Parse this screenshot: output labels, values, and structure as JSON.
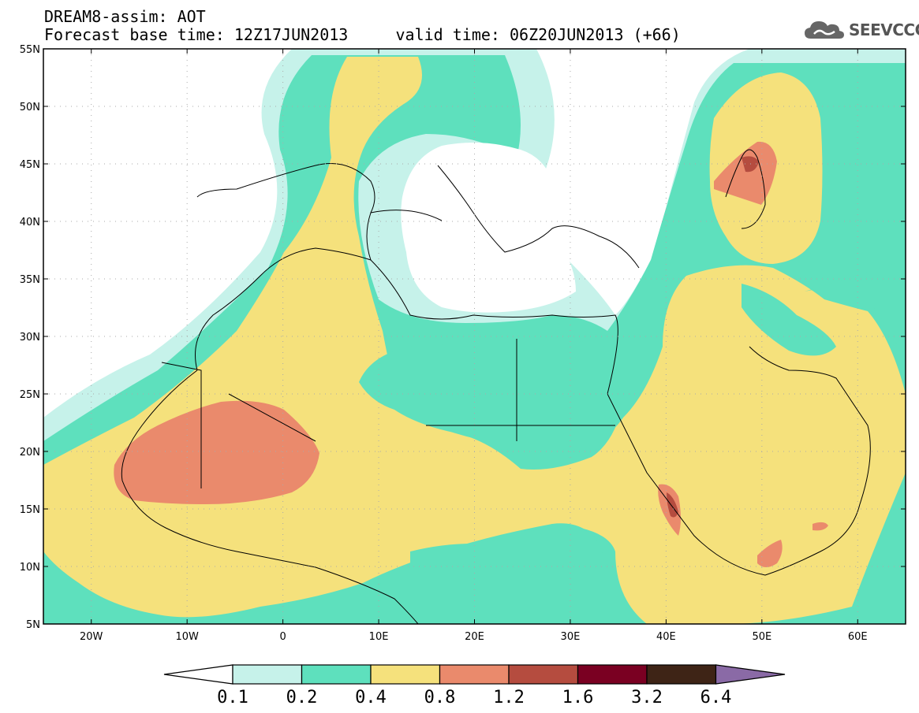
{
  "header": {
    "line1": "DREAM8-assim: AOT",
    "line2": "Forecast base time: 12Z17JUN2013     valid time: 06Z20JUN2013 (+66)",
    "logo_text": "SEEVCCC",
    "logo_icon": "cloud-icon"
  },
  "map": {
    "lon_range": [
      -25,
      65
    ],
    "lat_range": [
      5,
      55
    ],
    "lat_ticks": [
      "5N",
      "10N",
      "15N",
      "20N",
      "25N",
      "30N",
      "35N",
      "40N",
      "45N",
      "50N",
      "55N"
    ],
    "lon_ticks": [
      "20W",
      "10W",
      "0",
      "10E",
      "20E",
      "30E",
      "40E",
      "50E",
      "60E"
    ],
    "grid": "dotted"
  },
  "colorbar": {
    "labels": [
      "0.1",
      "0.2",
      "0.4",
      "0.8",
      "1.2",
      "1.6",
      "3.2",
      "6.4"
    ],
    "colors": [
      "#ffffff",
      "#c6f2ea",
      "#5ee0bd",
      "#f5e17c",
      "#ea8a6c",
      "#b54c3f",
      "#7a0022",
      "#3e2416",
      "#8a6aa6"
    ]
  },
  "colors": {
    "level_0_1": "#c6f2ea",
    "level_0_2": "#5ee0bd",
    "level_0_4": "#f5e17c",
    "level_0_8": "#ea8a6c",
    "level_1_2": "#b54c3f"
  }
}
